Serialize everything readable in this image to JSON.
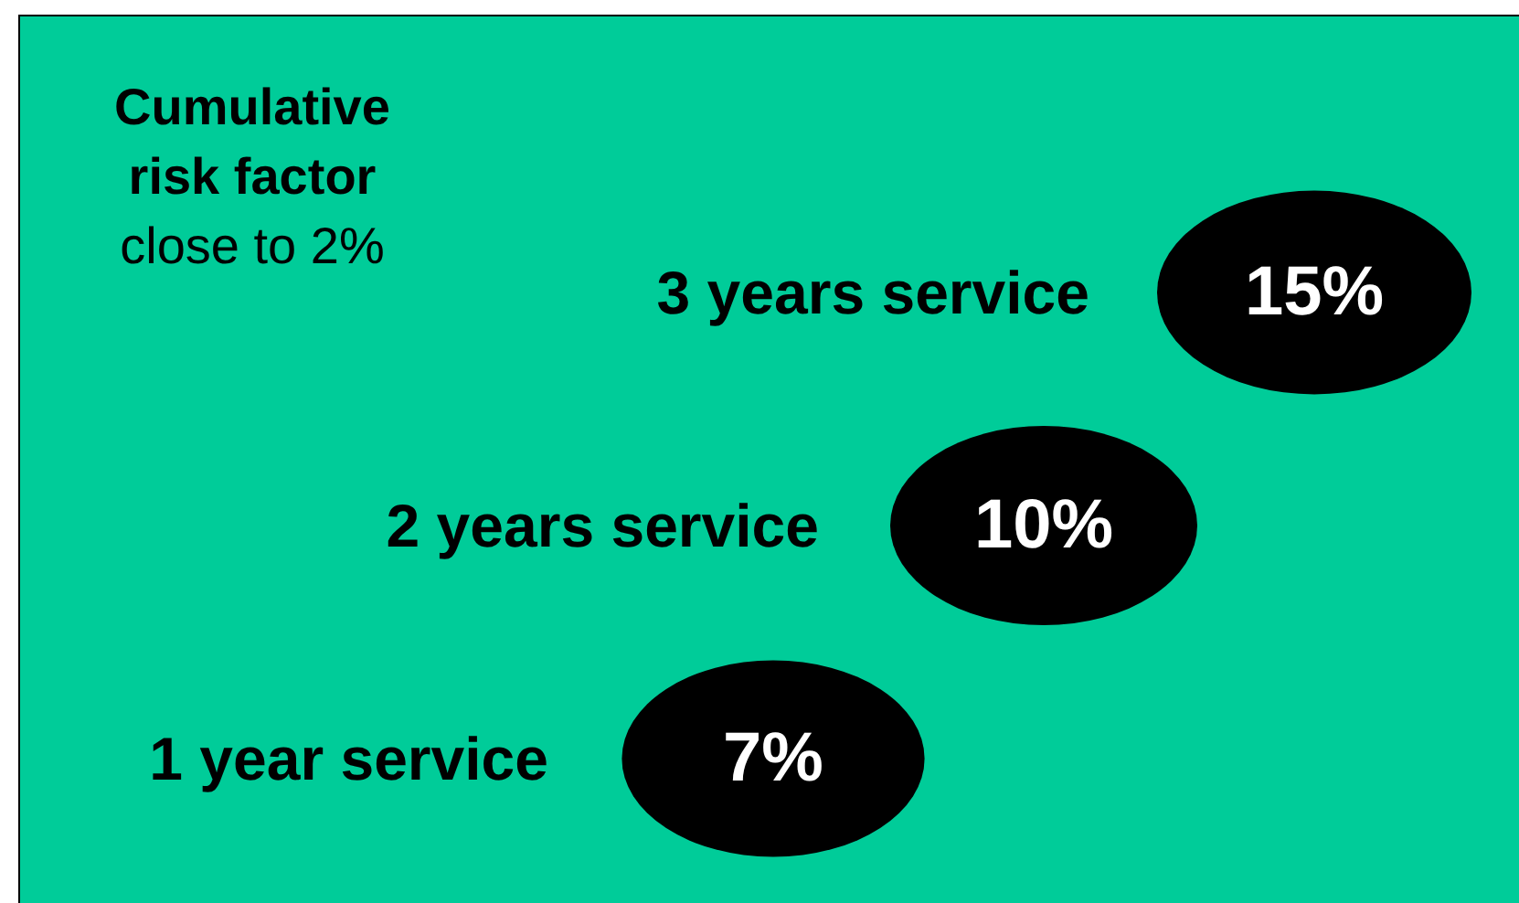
{
  "chart_data": {
    "type": "other",
    "title": "Cumulative risk factor",
    "subtitle": "close to 2%",
    "categories": [
      "1 year service",
      "2 years service",
      "3 years service"
    ],
    "values": [
      7,
      10,
      15
    ],
    "value_labels": [
      "7%",
      "10%",
      "15%"
    ],
    "color": "#000000"
  }
}
